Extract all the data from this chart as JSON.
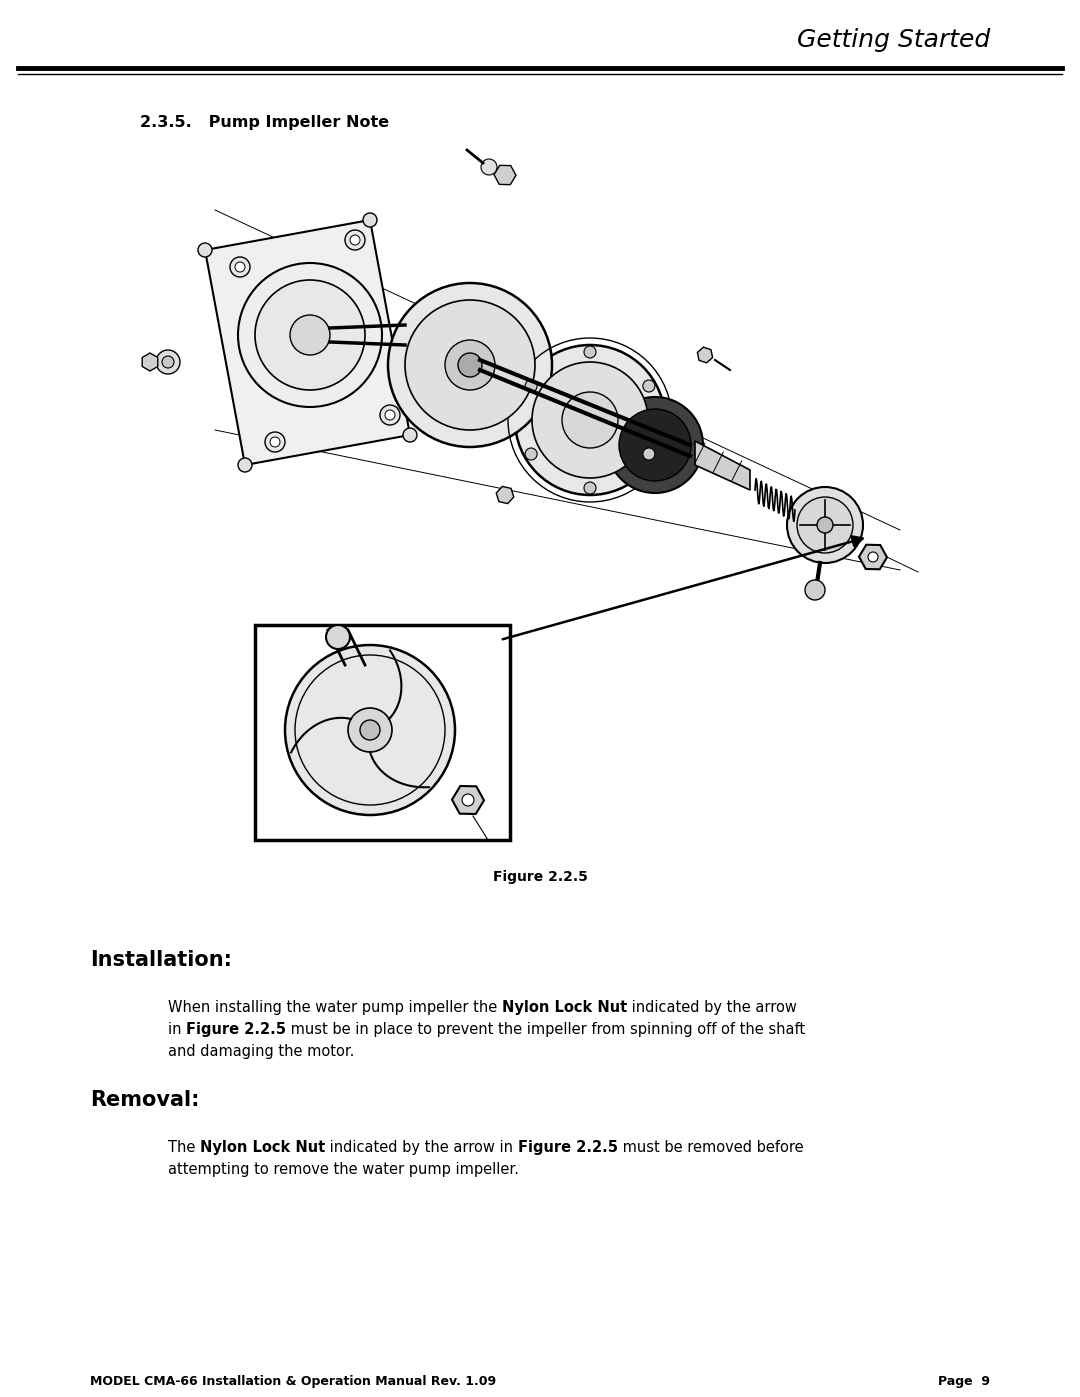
{
  "page_bg": "#ffffff",
  "header_title": "Getting Started",
  "header_title_font": 18,
  "section_title": "2.3.5.   Pump Impeller Note",
  "section_title_font": 11.5,
  "figure_caption": "Figure 2.2.5",
  "figure_caption_font": 10,
  "install_heading": "Installation:",
  "install_heading_font": 15,
  "install_line1_parts": [
    {
      "text": "When installing the water pump impeller the ",
      "bold": false
    },
    {
      "text": "Nylon Lock Nut",
      "bold": true
    },
    {
      "text": " indicated by the arrow",
      "bold": false
    }
  ],
  "install_line2_parts": [
    {
      "text": "in ",
      "bold": false
    },
    {
      "text": "Figure 2.2.5",
      "bold": true
    },
    {
      "text": " must be in place to prevent the impeller from spinning off of the shaft",
      "bold": false
    }
  ],
  "install_line3": "and damaging the motor.",
  "install_para_font": 10.5,
  "removal_heading": "Removal:",
  "removal_heading_font": 15,
  "removal_line1_parts": [
    {
      "text": "The ",
      "bold": false
    },
    {
      "text": "Nylon Lock Nut",
      "bold": true
    },
    {
      "text": " indicated by the arrow in ",
      "bold": false
    },
    {
      "text": "Figure 2.2.5",
      "bold": true
    },
    {
      "text": " must be removed before",
      "bold": false
    }
  ],
  "removal_line2": "attempting to remove the water pump impeller.",
  "removal_para_font": 10.5,
  "footer_left": "MODEL CMA-66 Installation & Operation Manual Rev. 1.09",
  "footer_right": "Page  9",
  "footer_font": 9
}
